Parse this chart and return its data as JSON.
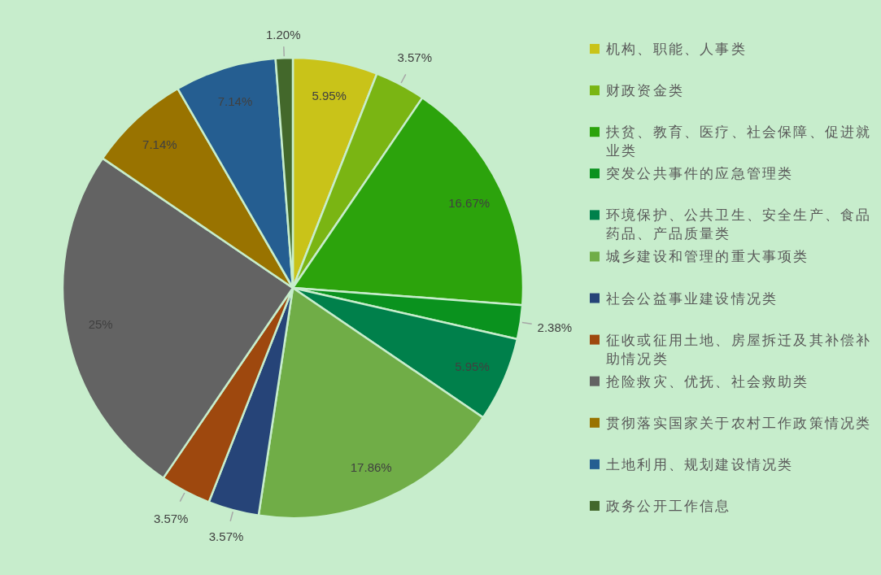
{
  "chart_data": {
    "type": "pie",
    "categories": [
      "机构、职能、人事类",
      "财政资金类",
      "扶贫、教育、医疗、社会保障、促进就业类",
      "突发公共事件的应急管理类",
      "环境保护、公共卫生、安全生产、食品药品、产品质量类",
      "城乡建设和管理的重大事项类",
      "社会公益事业建设情况类",
      "征收或征用土地、房屋拆迁及其补偿补助情况类",
      "抢险救灾、优抚、社会救助类",
      "贯彻落实国家关于农村工作政策情况类",
      "土地利用、规划建设情况类",
      "政务公开工作信息"
    ],
    "values": [
      5.95,
      3.57,
      16.67,
      2.38,
      5.95,
      17.86,
      3.57,
      3.57,
      25,
      7.14,
      7.14,
      1.2
    ],
    "value_labels": [
      "5.95%",
      "3.57%",
      "16.67%",
      "2.38%",
      "5.95%",
      "17.86%",
      "3.57%",
      "3.57%",
      "25%",
      "7.14%",
      "7.14%",
      "1.20%"
    ],
    "colors": [
      "#c9c319",
      "#7ab513",
      "#2ca30c",
      "#0a921e",
      "#00804b",
      "#70ad47",
      "#264478",
      "#9e480e",
      "#636363",
      "#997300",
      "#255e91",
      "#43682b"
    ],
    "legend": "right"
  }
}
